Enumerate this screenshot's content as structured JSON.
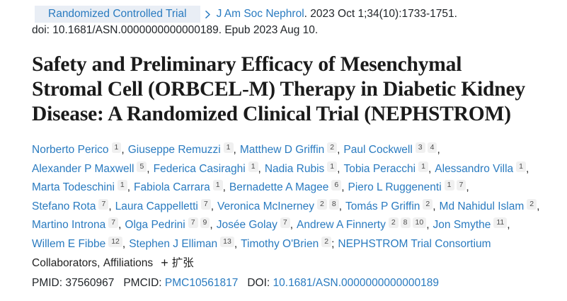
{
  "badge": {
    "label": "Randomized Controlled Trial"
  },
  "citation": {
    "journal": "J Am Soc Nephrol",
    "rest": ". 2023 Oct 1;34(10):1733-1751.",
    "doi_line": "doi: 10.1681/ASN.0000000000000189. Epub 2023 Aug 10."
  },
  "title": "Safety and Preliminary Efficacy of Mesenchymal Stromal Cell (ORBCEL-M) Therapy in Diabetic Kidney Disease: A Randomized Clinical Trial (NEPHSTROM)",
  "title_lines": [
    "Safety and Preliminary Efficacy of Mesenchymal",
    "Stromal Cell (ORBCEL-M) Therapy in Diabetic Kidney",
    "Disease: A Randomized Clinical Trial (NEPHSTROM)"
  ],
  "authors": {
    "lines": [
      [
        {
          "name": "Norberto Perico",
          "sups": [
            "1"
          ],
          "sep": ","
        },
        {
          "name": "Giuseppe Remuzzi",
          "sups": [
            "1"
          ],
          "sep": ","
        },
        {
          "name": "Matthew D Griffin",
          "sups": [
            "2"
          ],
          "sep": ","
        },
        {
          "name": "Paul Cockwell",
          "sups": [
            "3",
            "4"
          ],
          "sep": ","
        }
      ],
      [
        {
          "name": "Alexander P Maxwell",
          "sups": [
            "5"
          ],
          "sep": ","
        },
        {
          "name": "Federica Casiraghi",
          "sups": [
            "1"
          ],
          "sep": ","
        },
        {
          "name": "Nadia Rubis",
          "sups": [
            "1"
          ],
          "sep": ","
        },
        {
          "name": "Tobia Peracchi",
          "sups": [
            "1"
          ],
          "sep": ","
        },
        {
          "name": "Alessandro Villa",
          "sups": [
            "1"
          ],
          "sep": ","
        }
      ],
      [
        {
          "name": "Marta Todeschini",
          "sups": [
            "1"
          ],
          "sep": ","
        },
        {
          "name": "Fabiola Carrara",
          "sups": [
            "1"
          ],
          "sep": ","
        },
        {
          "name": "Bernadette A Magee",
          "sups": [
            "6"
          ],
          "sep": ","
        },
        {
          "name": "Piero L Ruggenenti",
          "sups": [
            "1",
            "7"
          ],
          "sep": ","
        }
      ],
      [
        {
          "name": "Stefano Rota",
          "sups": [
            "7"
          ],
          "sep": ","
        },
        {
          "name": "Laura Cappelletti",
          "sups": [
            "7"
          ],
          "sep": ","
        },
        {
          "name": "Veronica McInerney",
          "sups": [
            "2",
            "8"
          ],
          "sep": ","
        },
        {
          "name": "Tomás P Griffin",
          "sups": [
            "2"
          ],
          "sep": ","
        },
        {
          "name": "Md Nahidul Islam",
          "sups": [
            "2"
          ],
          "sep": ","
        }
      ],
      [
        {
          "name": "Martino Introna",
          "sups": [
            "7"
          ],
          "sep": ","
        },
        {
          "name": "Olga Pedrini",
          "sups": [
            "7",
            "9"
          ],
          "sep": ","
        },
        {
          "name": "Josée Golay",
          "sups": [
            "7"
          ],
          "sep": ","
        },
        {
          "name": "Andrew A Finnerty",
          "sups": [
            "2",
            "8",
            "10"
          ],
          "sep": ","
        },
        {
          "name": "Jon Smythe",
          "sups": [
            "11"
          ],
          "sep": ","
        }
      ],
      [
        {
          "name": "Willem E Fibbe",
          "sups": [
            "12"
          ],
          "sep": ","
        },
        {
          "name": "Stephen J Elliman",
          "sups": [
            "13"
          ],
          "sep": ","
        },
        {
          "name": "Timothy O'Brien",
          "sups": [
            "2"
          ],
          "sep": ";"
        },
        {
          "name": "NEPHSTROM Trial Consortium",
          "sups": [],
          "sep": ""
        }
      ]
    ]
  },
  "expand": {
    "collaborators_label": "Collaborators,",
    "affiliations_label": "Affiliations",
    "plus": "+",
    "label": "扩张"
  },
  "identifiers": {
    "pmid_label": "PMID:",
    "pmid": "37560967",
    "pmcid_label": "PMCID:",
    "pmcid": "PMC10561817",
    "doi_label": "DOI:",
    "doi": "10.1681/ASN.0000000000000189"
  },
  "colors": {
    "link_blue": "#2a7bc0",
    "badge_bg": "#e9eef5",
    "text_dark": "#212529",
    "sup_bg": "#f0f0f0"
  }
}
